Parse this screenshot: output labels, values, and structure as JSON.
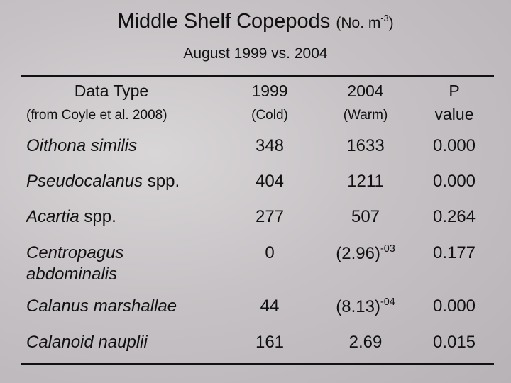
{
  "title": {
    "main": "Middle Shelf Copepods",
    "unit_prefix": "(No. m",
    "unit_exp": "-3",
    "unit_suffix": ")"
  },
  "subtitle": "August 1999 vs. 2004",
  "table": {
    "header": [
      {
        "label": "Data Type",
        "sub": "(from Coyle et al. 2008)"
      },
      {
        "label": "1999",
        "sub": "(Cold)"
      },
      {
        "label": "2004",
        "sub": "(Warm)"
      },
      {
        "label": "P",
        "sub": "value"
      }
    ],
    "rows": [
      {
        "name": "Oithona similis",
        "v1999": "348",
        "v2004": "1633",
        "p": "0.000"
      },
      {
        "name": "Pseudocalanus",
        "suffix": "spp.",
        "v1999": "404",
        "v2004": "1211",
        "p": "0.000"
      },
      {
        "name": "Acartia",
        "suffix": "spp.",
        "v1999": "277",
        "v2004": "507",
        "p": "0.264"
      },
      {
        "name": "Centropagus",
        "name2": "abdominalis",
        "v1999": "0",
        "v2004": "(2.96)",
        "v2004_exp": "-03",
        "p": "0.177"
      },
      {
        "name": "Calanus marshallae",
        "v1999": "44",
        "v2004": "(8.13)",
        "v2004_exp": "-04",
        "p": "0.000"
      },
      {
        "name": "Calanoid nauplii",
        "v1999": "161",
        "v2004": "2.69",
        "p": "0.015"
      }
    ]
  }
}
